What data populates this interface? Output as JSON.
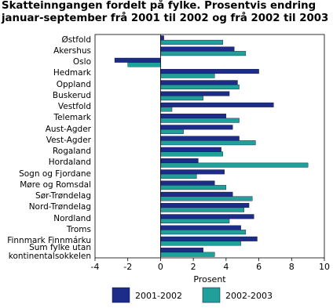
{
  "chart_data": {
    "type": "hbar",
    "title": "Skatteinngangen fordelt på fylke. Prosentvis endring januar-september frå 2001 til 2002 og frå 2002 til 2003",
    "x_label": "Prosent",
    "categories": [
      "Østfold",
      "Akershus",
      "Oslo",
      "Hedmark",
      "Oppland",
      "Buskerud",
      "Vestfold",
      "Telemark",
      "Aust-Agder",
      "Vest-Agder",
      "Rogaland",
      "Hordaland",
      "Sogn og Fjordane",
      "Møre og Romsdal",
      "Sør-Trøndelag",
      "Nord-Trøndelag",
      "Nordland",
      "Troms",
      "Finnmark Finnmárku",
      "Sum fylke utan kontinentalsokkelen"
    ],
    "series": [
      {
        "name": "2001-2002",
        "color": "#1c2c88",
        "values": [
          0.2,
          4.5,
          -2.8,
          6.0,
          4.7,
          4.2,
          6.9,
          4.0,
          4.4,
          4.8,
          3.7,
          2.3,
          3.9,
          3.3,
          4.4,
          5.4,
          5.7,
          4.9,
          5.9,
          2.6
        ]
      },
      {
        "name": "2002-2003",
        "color": "#21a09a",
        "values": [
          3.8,
          5.2,
          -2.0,
          3.3,
          4.8,
          2.6,
          0.7,
          4.8,
          1.4,
          5.8,
          3.8,
          9.0,
          2.2,
          4.0,
          5.6,
          5.1,
          4.2,
          5.2,
          4.9,
          3.3
        ]
      }
    ],
    "xlim": [
      -4,
      10
    ],
    "xticks": [
      -4,
      -2,
      0,
      2,
      4,
      6,
      8,
      10
    ],
    "grid": false
  }
}
